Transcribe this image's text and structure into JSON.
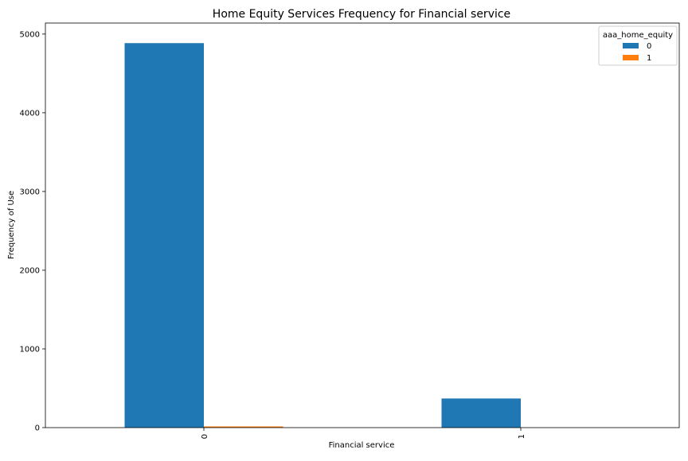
{
  "chart_data": {
    "type": "bar",
    "title": "Home Equity Services Frequency for Financial service",
    "xlabel": "Financial service",
    "ylabel": "Frequency of Use",
    "categories": [
      "0",
      "1"
    ],
    "series": [
      {
        "name": "0",
        "values": [
          4885,
          370
        ],
        "color": "#1f77b4"
      },
      {
        "name": "1",
        "values": [
          15,
          0
        ],
        "color": "#ff7f0e"
      }
    ],
    "ylim": [
      0,
      5140
    ],
    "yticks": [
      0,
      1000,
      2000,
      3000,
      4000,
      5000
    ],
    "grid": false,
    "legend": {
      "title": "aaa_home_equity",
      "placement": "top-right"
    },
    "xtick_rotation": 90
  }
}
